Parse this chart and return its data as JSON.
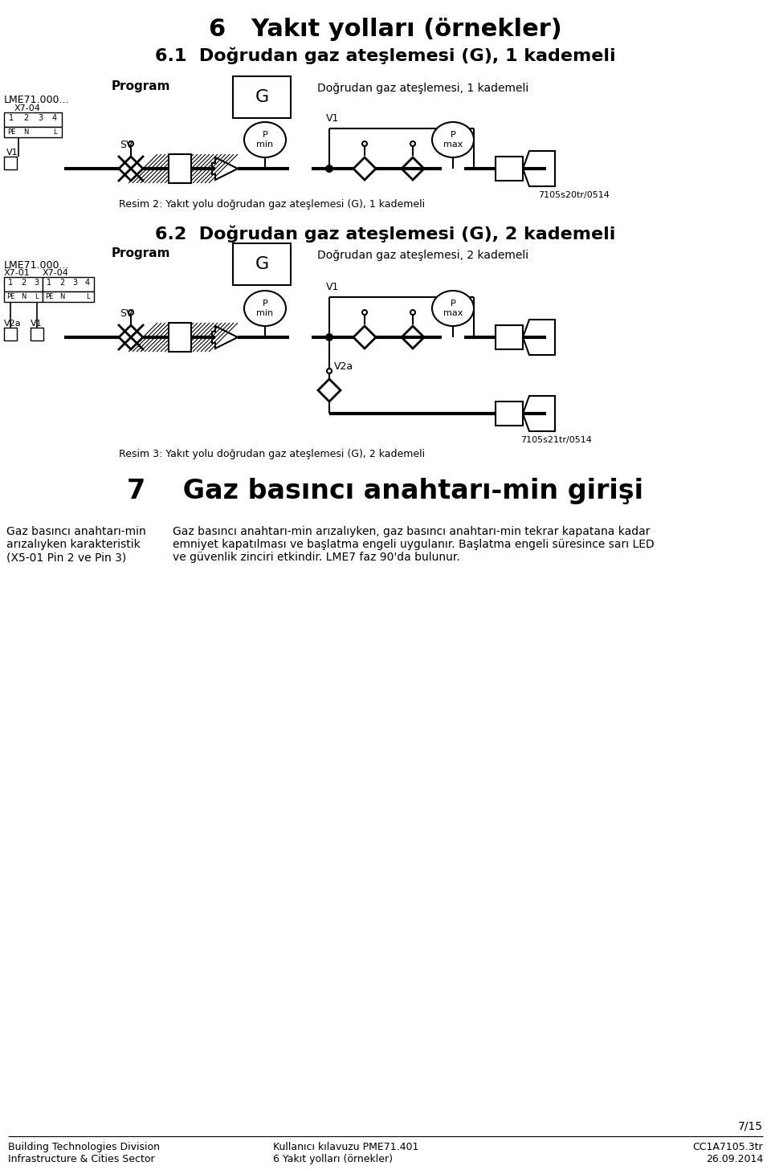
{
  "title_main": "6   Yakıt yolları (örnekler)",
  "title_6_1": "6.1  Doğrudan gaz ateşlemesi (G), 1 kademeli",
  "title_6_2": "6.2  Doğrudan gaz ateşlemesi (G), 2 kademeli",
  "title_7": "7    Gaz basıncı anahtarı-min girişi",
  "label_program": "Program",
  "label_G": "G",
  "label_desc1": "Doğrudan gaz ateşlemesi, 1 kademeli",
  "label_desc2": "Doğrudan gaz ateşlemesi, 2 kademeli",
  "label_LME": "LME71.000...",
  "label_X7_04": "X7-04",
  "label_X7_01": "X7-01",
  "label_SV": "SV",
  "label_V1": "V1",
  "label_V2a": "V2a",
  "label_img2": "Resim 2: Yakıt yolu doğrudan gaz ateşlemesi (G), 1 kademeli",
  "label_img3": "Resim 3: Yakıt yolu doğrudan gaz ateşlemesi (G), 2 kademeli",
  "label_code1": "7105s20tr/0514",
  "label_code2": "7105s21tr/0514",
  "text_left1": "Gaz basıncı anahtarı-min\narızalıyken karakteristik\n(X5-01 Pin 2 ve Pin 3)",
  "text_right1": "Gaz basıncı anahtarı-min arızalıyken, gaz basıncı anahtarı-min tekrar kapatana kadar\nemniyet kapatılması ve başlatma engeli uygulanır. Başlatma engeli süresince sarı LED\nve güvenlik zinciri etkindir. LME7 faz 90'da bulunur.",
  "footer_left1": "Building Technologies Division",
  "footer_left2": "Infrastructure & Cities Sector",
  "footer_mid1": "Kullanıcı kılavuzu PME71.401",
  "footer_mid2": "6 Yakıt yolları (örnekler)",
  "footer_right1": "CC1A7105.3tr",
  "footer_right2": "26.09.2014",
  "page_num": "7/15",
  "bg_color": "#ffffff"
}
